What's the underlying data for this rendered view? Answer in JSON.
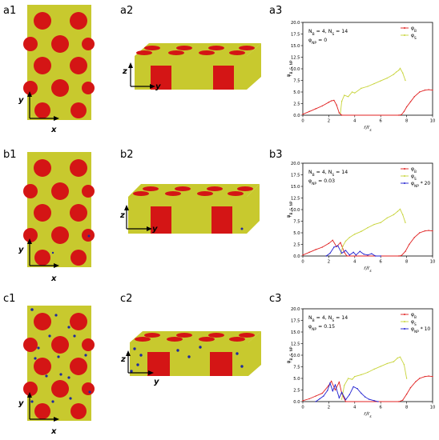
{
  "panel_labels": {
    "a1": "a1",
    "a2": "a2",
    "a3": "a3",
    "b1": "b1",
    "b2": "b2",
    "b3": "b3",
    "c1": "c1",
    "c2": "c2",
    "c3": "c3"
  },
  "axes_labels": {
    "x": "x",
    "y": "y",
    "z": "z"
  },
  "colors": {
    "matrix": "#c8c92e",
    "domain": "#d41515",
    "nanoparticle": "#1f2a9e",
    "phi_B": "#e02020",
    "phi_S": "#c8d43a",
    "phi_NP": "#2020d0"
  },
  "chart_data": [
    {
      "type": "line",
      "panel": "a3",
      "annotation_line1": "N_B = 4, N_S = 14",
      "annotation_line2": "φ_NP = 0",
      "xlabel": "r/r_s",
      "ylabel": "φ_B, S, NP",
      "xlim": [
        0,
        10
      ],
      "ylim": [
        0,
        20
      ],
      "xticks": [
        "0",
        "2",
        "4",
        "6",
        "8",
        "10"
      ],
      "yticks": [
        "0.0",
        "2.5",
        "5.0",
        "7.5",
        "10.0",
        "12.5",
        "15.0",
        "17.5",
        "20.0"
      ],
      "legend_position": "top-right",
      "series": [
        {
          "name": "φ_B",
          "color": "#e02020",
          "x": [
            0,
            0.5,
            1,
            1.5,
            2,
            2.2,
            2.4,
            2.6,
            2.8,
            3,
            7.4,
            7.6,
            7.8,
            8,
            8.3,
            8.6,
            9,
            9.4,
            9.7,
            10
          ],
          "y": [
            0.2,
            0.8,
            1.4,
            2.0,
            2.8,
            3.1,
            3.2,
            2.2,
            0.5,
            0,
            0,
            0.1,
            0.8,
            1.8,
            2.9,
            4.0,
            5.0,
            5.4,
            5.5,
            5.4
          ]
        },
        {
          "name": "φ_S",
          "color": "#c8d43a",
          "x": [
            2.9,
            3.0,
            3.2,
            3.5,
            3.8,
            4,
            4.5,
            5,
            5.5,
            6,
            6.5,
            7,
            7.2,
            7.4,
            7.5,
            7.7,
            7.9
          ],
          "y": [
            0.5,
            3.0,
            4.3,
            4.0,
            5.0,
            4.8,
            5.8,
            6.2,
            6.8,
            7.4,
            8.0,
            8.8,
            9.3,
            9.7,
            10.1,
            9.1,
            7.5
          ]
        }
      ]
    },
    {
      "type": "line",
      "panel": "b3",
      "annotation_line1": "N_B = 4, N_S = 14",
      "annotation_line2": "φ_NP = 0.03",
      "xlabel": "r/r_s",
      "ylabel": "φ_B, S, NP",
      "xlim": [
        0,
        10
      ],
      "ylim": [
        0,
        20
      ],
      "xticks": [
        "0",
        "2",
        "4",
        "6",
        "8",
        "10"
      ],
      "yticks": [
        "0.0",
        "2.5",
        "5.0",
        "7.5",
        "10.0",
        "12.5",
        "15.0",
        "17.5",
        "20.0"
      ],
      "legend_position": "top-right",
      "series": [
        {
          "name": "φ_B",
          "color": "#e02020",
          "x": [
            0,
            0.5,
            1,
            1.5,
            2,
            2.3,
            2.6,
            2.9,
            3.2,
            3.4,
            7.4,
            7.6,
            7.9,
            8.2,
            8.6,
            9,
            9.4,
            9.7,
            10
          ],
          "y": [
            0.2,
            0.8,
            1.4,
            1.9,
            2.7,
            3.4,
            2.0,
            2.9,
            0.8,
            0,
            0,
            0.1,
            1.0,
            2.5,
            4.0,
            5.0,
            5.4,
            5.5,
            5.4
          ]
        },
        {
          "name": "φ_S",
          "color": "#c8d43a",
          "x": [
            2.9,
            3.1,
            3.3,
            3.6,
            4,
            4.5,
            5,
            5.5,
            6,
            6.5,
            7,
            7.3,
            7.5,
            7.7,
            7.9
          ],
          "y": [
            0.4,
            2.2,
            3.2,
            4.0,
            4.7,
            5.3,
            6.1,
            6.8,
            7.2,
            8.2,
            8.9,
            9.6,
            10.1,
            8.9,
            7.2
          ]
        },
        {
          "name": "φ_NP * 20",
          "color": "#2020d0",
          "x": [
            1.8,
            2.1,
            2.4,
            2.7,
            3.0,
            3.3,
            3.6,
            3.9,
            4.1,
            4.4,
            4.7,
            5.0,
            5.3,
            5.6,
            6
          ],
          "y": [
            0,
            0.6,
            1.9,
            2.2,
            0.6,
            1.2,
            0.2,
            0.8,
            0.2,
            1.0,
            0.4,
            0.2,
            0.5,
            0,
            0
          ]
        }
      ]
    },
    {
      "type": "line",
      "panel": "c3",
      "annotation_line1": "N_B = 4, N_S = 14",
      "annotation_line2": "φ_NP = 0.15",
      "xlabel": "r/r_s",
      "ylabel": "φ_B, S, NP",
      "xlim": [
        0,
        10
      ],
      "ylim": [
        0,
        20
      ],
      "xticks": [
        "0",
        "2",
        "4",
        "6",
        "8",
        "10"
      ],
      "yticks": [
        "0.0",
        "2.5",
        "5.0",
        "7.5",
        "10.0",
        "12.5",
        "15.0",
        "17.5",
        "20.0"
      ],
      "legend_position": "top-right",
      "series": [
        {
          "name": "φ_B",
          "color": "#e02020",
          "x": [
            0,
            0.5,
            1,
            1.5,
            2,
            2.2,
            2.5,
            2.8,
            3.0,
            3.3,
            7.4,
            7.7,
            8,
            8.3,
            8.7,
            9,
            9.4,
            9.7,
            10
          ],
          "y": [
            0.2,
            0.6,
            1.2,
            1.8,
            3.5,
            4.4,
            2.5,
            4.2,
            1.8,
            0,
            0,
            0.3,
            1.6,
            3.0,
            4.3,
            5.0,
            5.4,
            5.5,
            5.4
          ]
        },
        {
          "name": "φ_S",
          "color": "#c8d43a",
          "x": [
            3.0,
            3.2,
            3.5,
            3.8,
            4,
            4.5,
            5,
            5.5,
            6,
            6.5,
            7,
            7.3,
            7.5,
            7.8,
            8
          ],
          "y": [
            0.5,
            3.5,
            5.0,
            4.8,
            5.4,
            5.8,
            6.3,
            7.0,
            7.6,
            8.2,
            8.6,
            9.4,
            9.6,
            8.0,
            5.0
          ]
        },
        {
          "name": "φ_NP * 10",
          "color": "#2020d0",
          "x": [
            1.0,
            1.3,
            1.6,
            1.9,
            2.1,
            2.3,
            2.5,
            2.8,
            3.0,
            3.3,
            3.6,
            3.9,
            4.2,
            4.5,
            4.8,
            5.1,
            5.5,
            5.8
          ],
          "y": [
            0,
            0.6,
            1.2,
            2.4,
            4.0,
            2.3,
            3.6,
            0.8,
            2.0,
            0.4,
            1.5,
            3.2,
            2.8,
            1.8,
            1.0,
            0.5,
            0.2,
            0
          ]
        }
      ]
    }
  ]
}
